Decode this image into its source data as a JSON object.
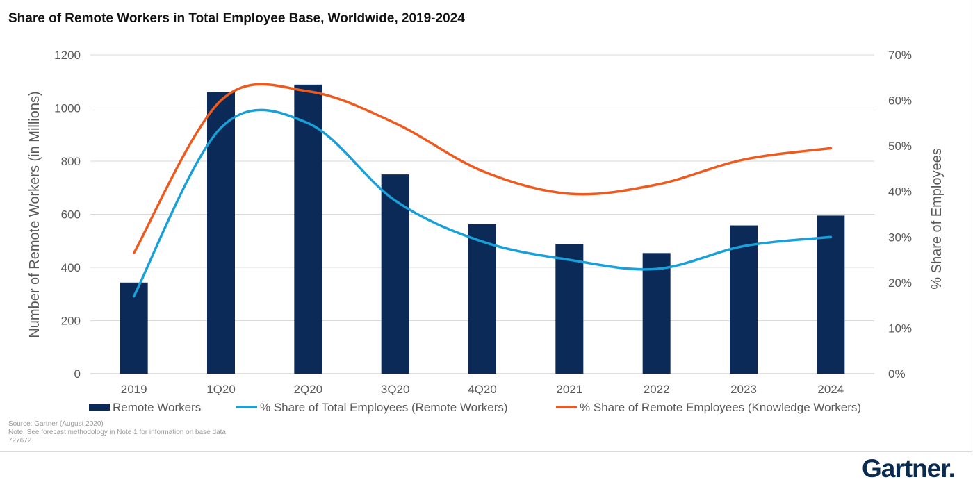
{
  "header": {
    "title": "Share of Remote Workers in Total Employee Base, Worldwide, 2019-2024"
  },
  "chart_data": {
    "type": "bar",
    "title": "Share of Remote Workers in Total Employee Base, Worldwide, 2019-2024",
    "categories": [
      "2019",
      "1Q20",
      "2Q20",
      "3Q20",
      "4Q20",
      "2021",
      "2022",
      "2023",
      "2024"
    ],
    "series": [
      {
        "name": "Remote Workers",
        "type": "bar",
        "axis": "left",
        "color": "#0b2a57",
        "values": [
          343,
          1060,
          1088,
          750,
          563,
          488,
          454,
          558,
          595
        ]
      },
      {
        "name": "% Share of Total Employees (Remote Workers)",
        "type": "line",
        "axis": "right",
        "color": "#1aa0d8",
        "values": [
          17,
          54,
          55,
          38,
          29,
          25,
          23,
          28,
          30
        ]
      },
      {
        "name": "% Share of Remote Employees (Knowledge Workers)",
        "type": "line",
        "axis": "right",
        "color": "#ee5a1e",
        "values": [
          26.5,
          60,
          62,
          55,
          44.5,
          39.5,
          41.5,
          47,
          49.5
        ]
      }
    ],
    "ylabel": "Number of Remote Workers (in Millions)",
    "ylim": [
      0,
      1200
    ],
    "yticks": [
      "0",
      "200",
      "400",
      "600",
      "800",
      "1000",
      "1200"
    ],
    "y2label": "% Share of Employees",
    "y2lim": [
      0,
      70
    ],
    "y2ticks": [
      "0%",
      "10%",
      "20%",
      "30%",
      "40%",
      "50%",
      "60%",
      "70%"
    ],
    "grid": true,
    "legend": "bottom"
  },
  "footer": {
    "source": "Source: Gartner (August 2020)",
    "note": "Note: See forecast methodology in Note 1 for information on base data",
    "id": "727672",
    "logo": "Gartner."
  }
}
